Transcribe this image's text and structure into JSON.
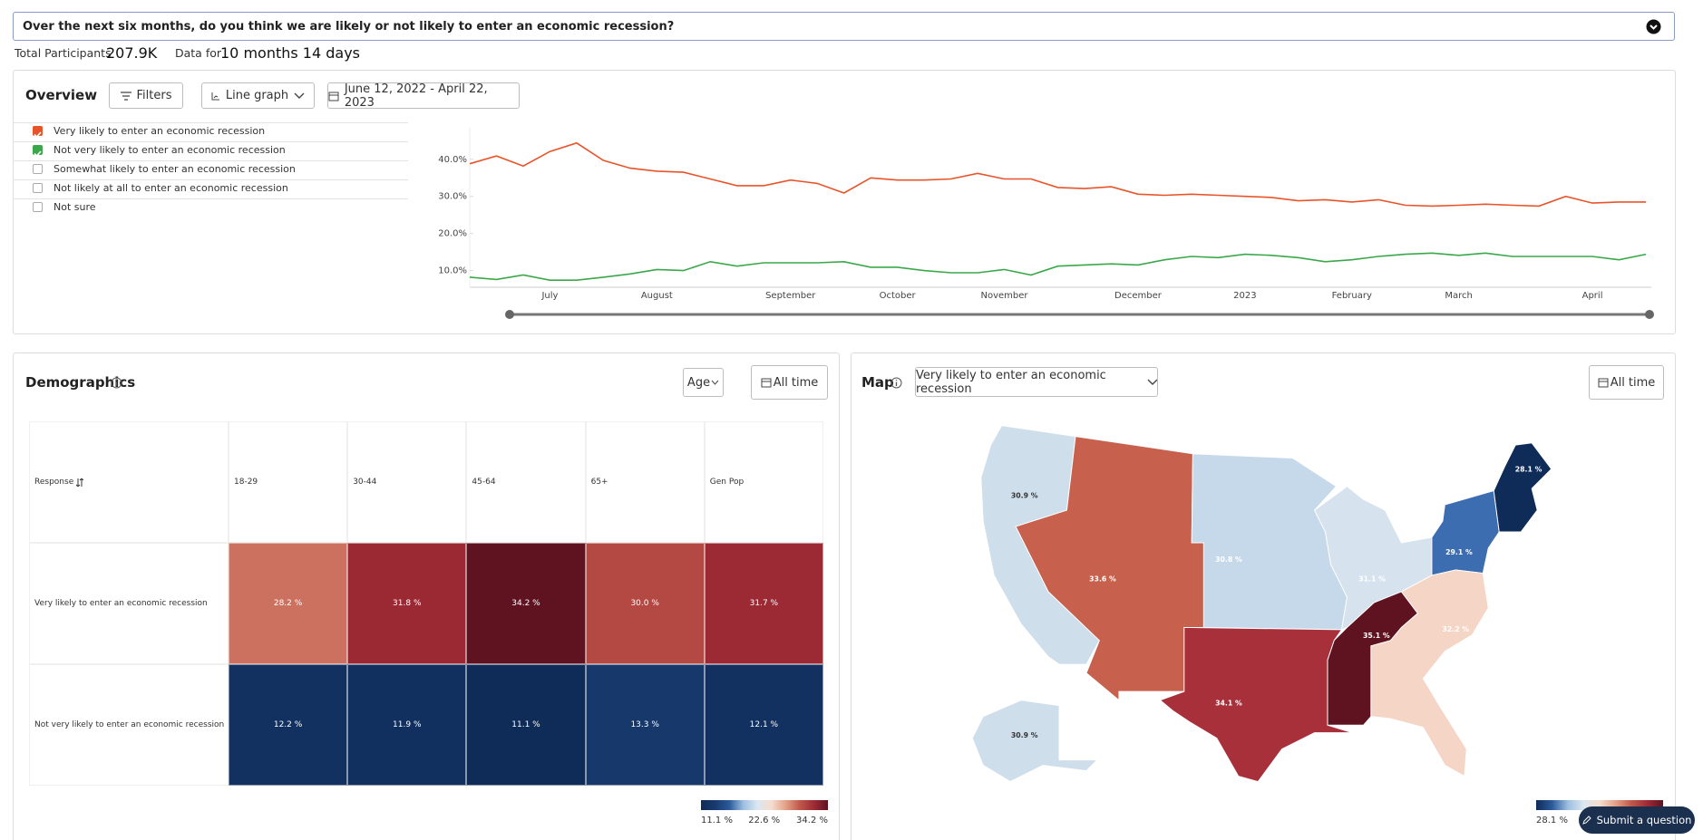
{
  "question": "Over the next six months, do you think we are likely or not likely to enter an economic recession?",
  "stats": {
    "participants_label": "Total Participants",
    "participants": "207.9K",
    "data_for_label": "Data for",
    "data_for": "10 months 14 days"
  },
  "overview": {
    "title": "Overview",
    "filters": "Filters",
    "view": "Line graph",
    "date_range": "June 12, 2022 - April 22, 2023",
    "other_responses": [
      "Somewhat likely to enter an economic recession",
      "Not likely at all to enter an economic recession",
      "Not sure"
    ]
  },
  "chart_data": {
    "type": "line",
    "categories": [
      null,
      null,
      null,
      "July",
      null,
      null,
      null,
      "August",
      null,
      null,
      null,
      null,
      "September",
      null,
      null,
      null,
      "October",
      null,
      null,
      null,
      "November",
      null,
      null,
      null,
      null,
      "December",
      null,
      null,
      null,
      "2023",
      null,
      null,
      null,
      "February",
      null,
      null,
      null,
      "March",
      null,
      null,
      null,
      null,
      "April",
      null,
      null
    ],
    "series": [
      {
        "name": "Very likely to enter an economic recession",
        "color": "#e8542a",
        "values": [
          38.8,
          40.9,
          38.2,
          42.1,
          44.4,
          39.7,
          37.6,
          36.8,
          36.5,
          34.7,
          32.9,
          32.9,
          34.4,
          33.5,
          30.9,
          35.0,
          34.4,
          34.4,
          34.7,
          36.2,
          34.7,
          34.7,
          32.4,
          32.1,
          32.6,
          30.6,
          30.3,
          30.6,
          30.3,
          30.0,
          29.7,
          28.8,
          29.1,
          28.5,
          29.1,
          27.6,
          27.4,
          27.6,
          27.9,
          27.6,
          27.4,
          30.0,
          28.2,
          28.5,
          28.5
        ]
      },
      {
        "name": "Not very likely to enter an economic recession",
        "color": "#3aa84a",
        "values": [
          8.2,
          7.6,
          8.8,
          7.4,
          7.4,
          8.2,
          9.1,
          10.3,
          10.0,
          12.4,
          11.2,
          12.1,
          12.1,
          12.1,
          12.4,
          10.9,
          10.9,
          10.0,
          9.4,
          9.4,
          10.3,
          8.8,
          11.2,
          11.5,
          11.8,
          11.5,
          12.9,
          13.8,
          13.5,
          14.4,
          14.1,
          13.5,
          12.4,
          12.9,
          13.8,
          14.4,
          14.7,
          14.1,
          14.7,
          13.8,
          13.8,
          13.8,
          13.8,
          12.9,
          14.4
        ]
      }
    ],
    "ylim": [
      5.5,
      48.5
    ],
    "yticks": [
      {
        "value": 10,
        "label": "10.0%"
      },
      {
        "value": 20,
        "label": "20.0%"
      },
      {
        "value": 30,
        "label": "30.0%"
      },
      {
        "value": 40,
        "label": "40.0%"
      }
    ],
    "grid": false
  },
  "demographics": {
    "title": "Demographics",
    "group": "Age",
    "period": "All time",
    "table": {
      "header": [
        "Response",
        "18-29",
        "30-44",
        "45-64",
        "65+",
        "Gen Pop"
      ],
      "rows": [
        {
          "label": "Very likely to enter an economic recession",
          "values": [
            28.2,
            31.8,
            34.2,
            30.0,
            31.7
          ],
          "value_labels": [
            "28.2 %",
            "31.8 %",
            "34.2 %",
            "30.0 %",
            "31.7 %"
          ]
        },
        {
          "label": "Not very likely to enter an economic recession",
          "values": [
            12.2,
            11.9,
            11.1,
            13.3,
            12.1
          ],
          "value_labels": [
            "12.2 %",
            "11.9 %",
            "11.1 %",
            "13.3 %",
            "12.1 %"
          ]
        }
      ]
    },
    "scale": {
      "values": [
        11.1,
        22.6,
        34.2
      ],
      "labels": [
        "11.1 %",
        "22.6 %",
        "34.2 %"
      ],
      "colors": [
        "#0f2b58",
        "#173a6e",
        "#2a5a9a",
        "#9cbfe0",
        "#dbe7f1",
        "#f5dccd",
        "#e3a188",
        "#c0584a",
        "#9e2b35",
        "#5f1220"
      ]
    }
  },
  "map": {
    "title": "Map",
    "response": "Very likely to enter an economic recession",
    "period": "All time",
    "regions": [
      {
        "value": 30.9,
        "label": "30.9 %",
        "color": "#cfdeeb"
      },
      {
        "value": 33.6,
        "label": "33.6 %",
        "color": "#c8604e"
      },
      {
        "value": 30.8,
        "label": "30.8 %",
        "color": "#c6d9ea"
      },
      {
        "value": 31.1,
        "label": "31.1 %",
        "color": "#d6e3ee"
      },
      {
        "value": 29.1,
        "label": "29.1 %",
        "color": "#3b6db0"
      },
      {
        "value": 28.1,
        "label": "28.1 %",
        "color": "#0f2b58"
      },
      {
        "value": 35.1,
        "label": "35.1 %",
        "color": "#5f1220"
      },
      {
        "value": 32.2,
        "label": "32.2 %",
        "color": "#f5d6c6"
      },
      {
        "value": 34.1,
        "label": "34.1 %",
        "color": "#a8303a"
      },
      {
        "value": 30.9,
        "label": "30.9 %",
        "color": "#cfdeeb"
      }
    ],
    "scale": {
      "labels": [
        "28.1 %"
      ],
      "colors": [
        "#0f2b58",
        "#2a5a9a",
        "#9cbfe0",
        "#dbe7f1",
        "#f5dccd",
        "#e3a188",
        "#c0584a",
        "#9e2b35",
        "#5f1220"
      ]
    }
  },
  "submit": "Submit a question"
}
